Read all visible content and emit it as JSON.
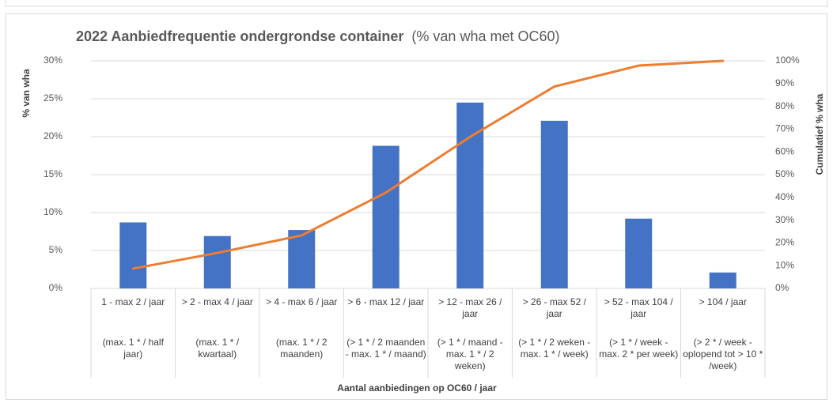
{
  "chart_data": {
    "type": "bar",
    "title": "2022 Aanbiedfrequentie ondergrondse container",
    "subtitle": "(% van wha met OC60)",
    "xlabel": "Aantal aanbiedingen op OC60 / jaar",
    "ylabel": "% van wha",
    "y2label": "Cumulatief % wha",
    "categories": [
      "1 - max 2 / jaar",
      "> 2 - max 4 / jaar",
      "> 4 - max 6 / jaar",
      "> 6 - max 12 / jaar",
      "> 12 - max 26 / jaar",
      "> 26 - max 52 / jaar",
      "> 52 - max 104 / jaar",
      "> 104 / jaar"
    ],
    "category_notes": [
      "(max. 1 * / half jaar)",
      "(max. 1 * / kwartaal)",
      "(max. 1 * / 2 maanden)",
      "(> 1 * / 2 maanden - max. 1 * / maand)",
      "(> 1 * /  maand - max.  1 * / 2 weken)",
      "(> 1 * /  2 weken - max. 1 * / week)",
      "(>  1 * / week - max. 2 * per week)",
      "(>  2 * / week - oplopend tot > 10 * /week)"
    ],
    "series": [
      {
        "type": "bar",
        "color": "#4472c4",
        "values": [
          8.7,
          6.9,
          7.7,
          18.8,
          24.5,
          22.1,
          9.2,
          2.1
        ]
      },
      {
        "type": "line",
        "axis": "y2",
        "color": "#ed7d31",
        "values": [
          8.7,
          15.6,
          23.3,
          42.1,
          66.6,
          88.7,
          97.9,
          100
        ]
      }
    ],
    "ylim": [
      0,
      30
    ],
    "yticks": [
      {
        "value": 0,
        "label": "0%"
      },
      {
        "value": 5,
        "label": "5%"
      },
      {
        "value": 10,
        "label": "10%"
      },
      {
        "value": 15,
        "label": "15%"
      },
      {
        "value": 20,
        "label": "20%"
      },
      {
        "value": 25,
        "label": "25%"
      },
      {
        "value": 30,
        "label": "30%"
      }
    ],
    "y2lim": [
      0,
      100
    ],
    "y2ticks": [
      {
        "value": 0,
        "label": "0%"
      },
      {
        "value": 10,
        "label": "10%"
      },
      {
        "value": 20,
        "label": "20%"
      },
      {
        "value": 30,
        "label": "30%"
      },
      {
        "value": 40,
        "label": "40%"
      },
      {
        "value": 50,
        "label": "50%"
      },
      {
        "value": 60,
        "label": "60%"
      },
      {
        "value": 70,
        "label": "70%"
      },
      {
        "value": 80,
        "label": "80%"
      },
      {
        "value": 90,
        "label": "90%"
      },
      {
        "value": 100,
        "label": "100%"
      }
    ],
    "grid": true
  }
}
